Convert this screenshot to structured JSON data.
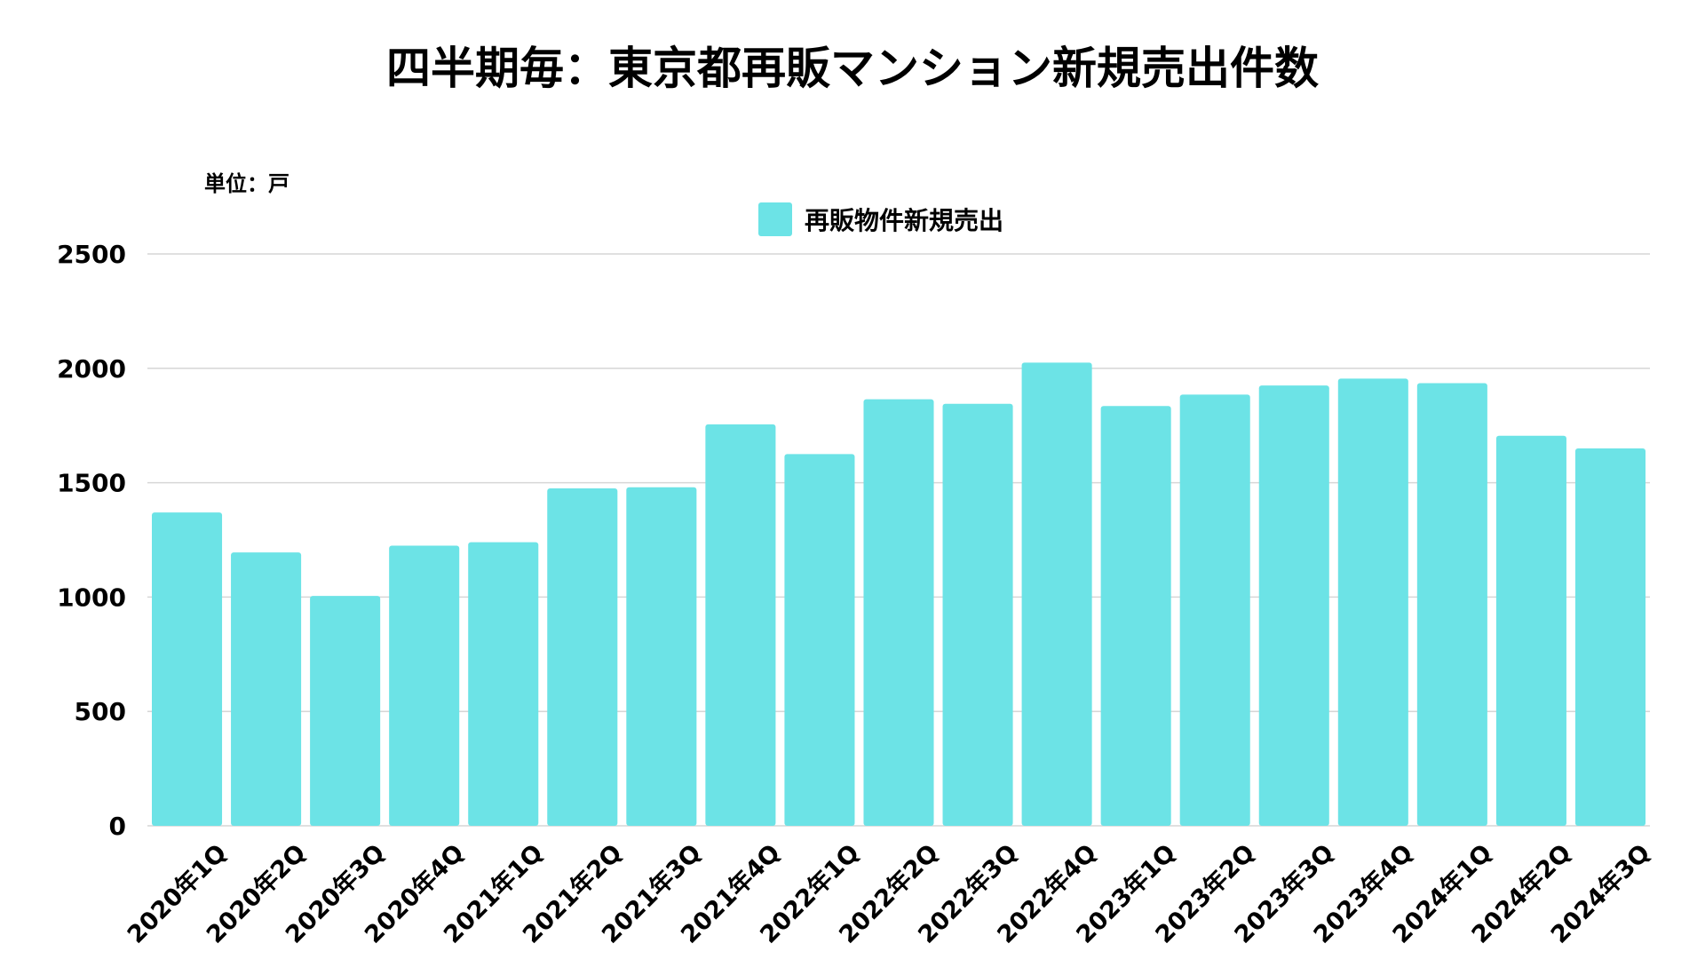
{
  "chart_data": {
    "type": "bar",
    "title": "四半期毎：東京都再販マンション新規売出件数",
    "unit_label": "単位：戸",
    "categories": [
      "2020年1Q",
      "2020年2Q",
      "2020年3Q",
      "2020年4Q",
      "2021年1Q",
      "2021年2Q",
      "2021年3Q",
      "2021年4Q",
      "2022年1Q",
      "2022年2Q",
      "2022年3Q",
      "2022年4Q",
      "2023年1Q",
      "2023年2Q",
      "2023年3Q",
      "2023年4Q",
      "2024年1Q",
      "2024年2Q",
      "2024年3Q"
    ],
    "series": [
      {
        "name": "再販物件新規売出",
        "color": "#6ce3e6",
        "values": [
          1370,
          1195,
          1005,
          1225,
          1240,
          1475,
          1480,
          1755,
          1625,
          1865,
          1845,
          2025,
          1835,
          1885,
          1925,
          1955,
          1935,
          1705,
          1650
        ]
      }
    ],
    "ylim": [
      0,
      2500
    ],
    "yticks": [
      0,
      500,
      1000,
      1500,
      2000,
      2500
    ],
    "grid": true,
    "legend_position": "top-center",
    "xlabel": "",
    "ylabel": ""
  }
}
